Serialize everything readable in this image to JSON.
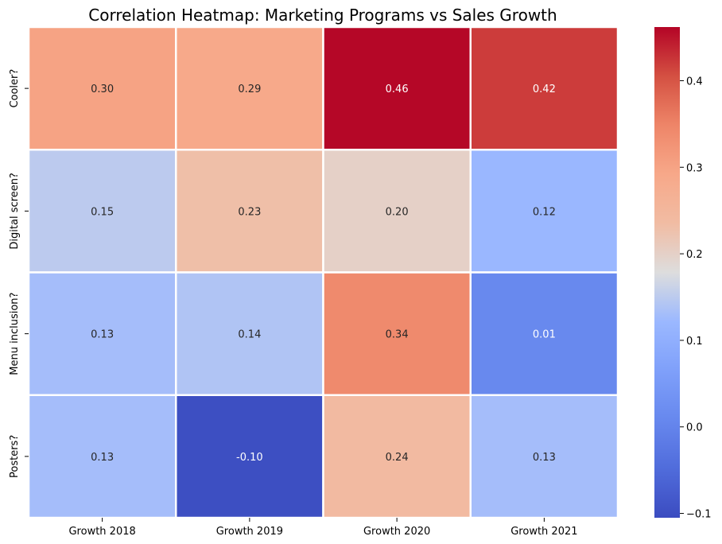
{
  "chart_data": {
    "type": "heatmap",
    "title": "Correlation Heatmap: Marketing Programs vs Sales Growth",
    "xlabel": "",
    "ylabel": "",
    "x_categories": [
      "Growth 2018",
      "Growth 2019",
      "Growth 2020",
      "Growth 2021"
    ],
    "y_categories": [
      "Cooler?",
      "Digital screen?",
      "Menu inclusion?",
      "Posters?"
    ],
    "values": [
      [
        0.3,
        0.29,
        0.46,
        0.42
      ],
      [
        0.15,
        0.23,
        0.2,
        0.12
      ],
      [
        0.13,
        0.14,
        0.34,
        0.01
      ],
      [
        0.13,
        -0.1,
        0.24,
        0.13
      ]
    ],
    "value_labels": [
      [
        "0.30",
        "0.29",
        "0.46",
        "0.42"
      ],
      [
        "0.15",
        "0.23",
        "0.20",
        "0.12"
      ],
      [
        "0.13",
        "0.14",
        "0.34",
        "0.01"
      ],
      [
        "0.13",
        "-0.10",
        "0.24",
        "0.13"
      ]
    ],
    "colormap": "coolwarm",
    "vmin": -0.105,
    "vmax": 0.462,
    "colorbar_ticks": [
      0.4,
      0.3,
      0.2,
      0.1,
      0.0,
      -0.1
    ],
    "colorbar_tick_labels": [
      "0.4",
      "0.3",
      "0.2",
      "0.1",
      "0.0",
      "−0.1"
    ],
    "grid_line_color": "#ffffff"
  }
}
